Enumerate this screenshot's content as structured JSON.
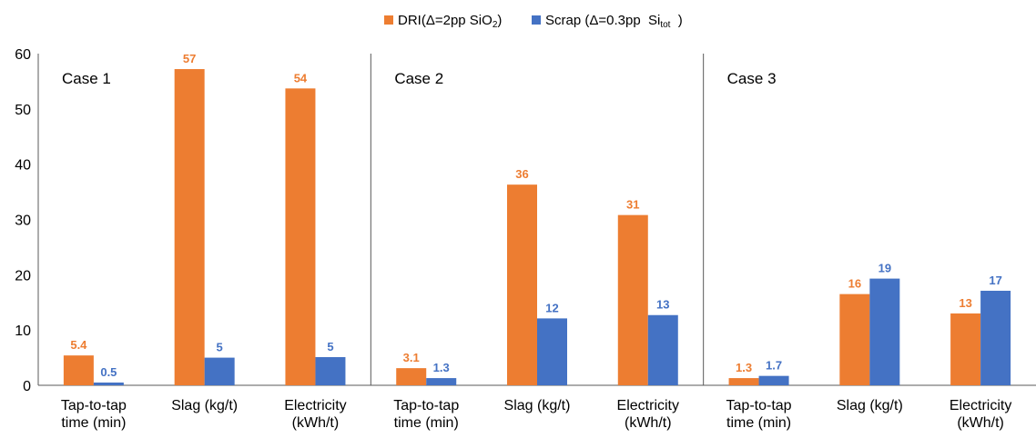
{
  "chart_data": {
    "type": "bar",
    "ylim": [
      0,
      60
    ],
    "yticks": [
      0,
      10,
      20,
      30,
      40,
      50,
      60
    ],
    "grid": false,
    "legend_position": "top-center",
    "legend": [
      {
        "key": "dri",
        "color": "#ED7D31",
        "parts": [
          {
            "t": "DRI(Δ=2pp SiO",
            "sub": false
          },
          {
            "t": "2",
            "sub": true
          },
          {
            "t": ")",
            "sub": false
          }
        ]
      },
      {
        "key": "scrap",
        "color": "#4472C4",
        "parts": [
          {
            "t": "Scrap (Δ=0.3pp  Si",
            "sub": false
          },
          {
            "t": "tot",
            "sub": true
          },
          {
            "t": "  )",
            "sub": false
          }
        ]
      }
    ],
    "panels": [
      {
        "title": "Case 1",
        "categories": [
          [
            "Tap-to-tap",
            "time (min)"
          ],
          [
            "Slag (kg/t)"
          ],
          [
            "Electricity",
            "(kWh/t)"
          ]
        ],
        "series": [
          {
            "key": "dri",
            "values": [
              5.4,
              57.2,
              53.7
            ],
            "labels": [
              "5.4",
              "57",
              "54"
            ]
          },
          {
            "key": "scrap",
            "values": [
              0.5,
              5.0,
              5.1
            ],
            "labels": [
              "0.5",
              "5",
              "5"
            ]
          }
        ]
      },
      {
        "title": "Case 2",
        "categories": [
          [
            "Tap-to-tap",
            "time (min)"
          ],
          [
            "Slag (kg/t)"
          ],
          [
            "Electricity",
            "(kWh/t)"
          ]
        ],
        "series": [
          {
            "key": "dri",
            "values": [
              3.1,
              36.3,
              30.8
            ],
            "labels": [
              "3.1",
              "36",
              "31"
            ]
          },
          {
            "key": "scrap",
            "values": [
              1.3,
              12.1,
              12.7
            ],
            "labels": [
              "1.3",
              "12",
              "13"
            ]
          }
        ]
      },
      {
        "title": "Case 3",
        "categories": [
          [
            "Tap-to-tap",
            "time (min)"
          ],
          [
            "Slag (kg/t)"
          ],
          [
            "Electricity",
            "(kWh/t)"
          ]
        ],
        "series": [
          {
            "key": "dri",
            "values": [
              1.3,
              16.5,
              13.0
            ],
            "labels": [
              "1.3",
              "16",
              "13"
            ]
          },
          {
            "key": "scrap",
            "values": [
              1.7,
              19.3,
              17.1
            ],
            "labels": [
              "1.7",
              "19",
              "17"
            ]
          }
        ]
      }
    ]
  }
}
